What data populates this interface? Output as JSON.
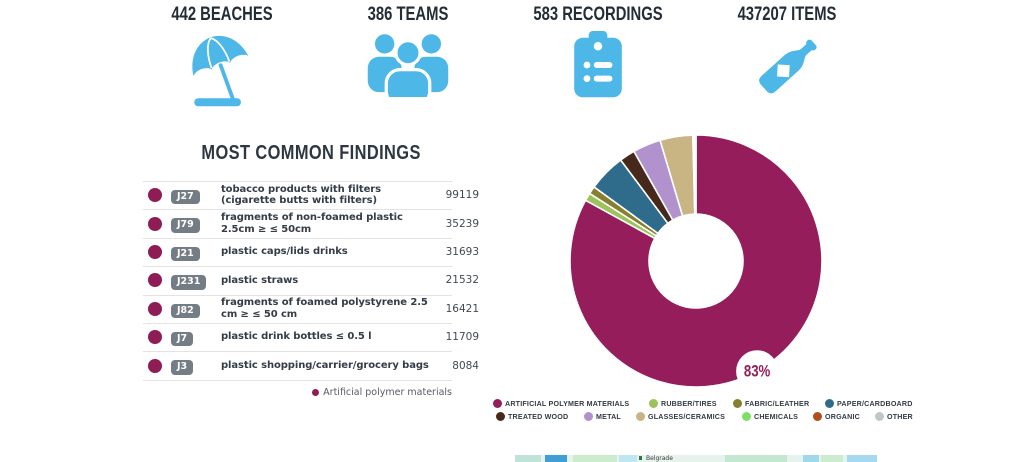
{
  "stats": [
    {
      "label": "442 BEACHES"
    },
    {
      "label": "386 TEAMS"
    },
    {
      "label": "583 RECORDINGS"
    },
    {
      "label": "437207 ITEMS"
    }
  ],
  "findings": {
    "title": "MOST COMMON FINDINGS",
    "dot_color": "#8e1d55",
    "rows": [
      {
        "code": "J27",
        "label": "tobacco products with filters (cigarette butts with filters)",
        "value": "99119"
      },
      {
        "code": "J79",
        "label": "fragments of non-foamed plastic 2.5cm ≥ ≤ 50cm",
        "value": "35239"
      },
      {
        "code": "J21",
        "label": "plastic caps/lids drinks",
        "value": "31693"
      },
      {
        "code": "J231",
        "label": "plastic straws",
        "value": "21532"
      },
      {
        "code": "J82",
        "label": "fragments of foamed polystyrene 2.5 cm ≥ ≤ 50 cm",
        "value": "16421"
      },
      {
        "code": "J7",
        "label": "plastic drink bottles ≤ 0.5 l",
        "value": "11709"
      },
      {
        "code": "J3",
        "label": "plastic shopping/carrier/grocery bags",
        "value": "8084"
      }
    ],
    "footnote": "Artificial polymer materials"
  },
  "chart_data": {
    "type": "pie",
    "donut": true,
    "legend_position": "bottom",
    "callout": "83%",
    "unit": "%",
    "series": [
      {
        "name": "ARTIFICIAL POLYMER MATERIALS",
        "value": 83.0,
        "color": "#951d5b"
      },
      {
        "name": "RUBBER/TIRES",
        "value": 1.0,
        "color": "#9cc25b"
      },
      {
        "name": "FABRIC/LEATHER",
        "value": 1.0,
        "color": "#84802f"
      },
      {
        "name": "PAPER/CARDBOARD",
        "value": 4.8,
        "color": "#2f6b8a"
      },
      {
        "name": "TREATED WOOD",
        "value": 2.0,
        "color": "#46291b"
      },
      {
        "name": "METAL",
        "value": 3.6,
        "color": "#b292cc"
      },
      {
        "name": "GLASSES/CERAMICS",
        "value": 4.2,
        "color": "#c8b583"
      },
      {
        "name": "CHEMICALS",
        "value": 0.2,
        "color": "#7ddf63"
      },
      {
        "name": "ORGANIC",
        "value": 0.1,
        "color": "#b14d1c"
      },
      {
        "name": "OTHER",
        "value": 0.1,
        "color": "#bfc6cc"
      }
    ]
  },
  "map": {
    "label": "Belgrade"
  }
}
